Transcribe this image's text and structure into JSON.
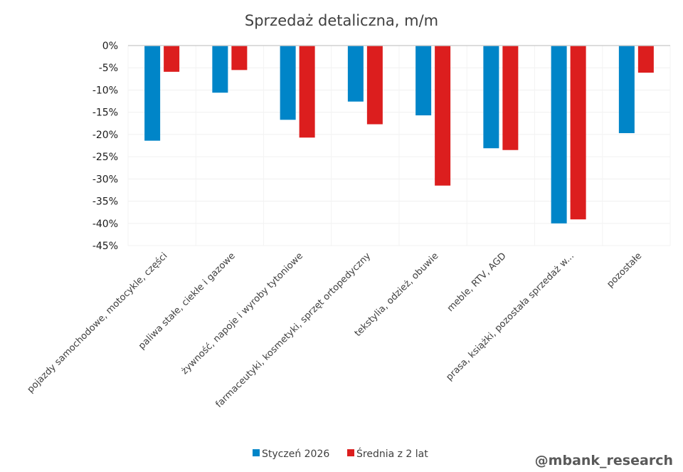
{
  "chart_data": {
    "type": "bar",
    "title": "Sprzedaż detaliczna, m/m",
    "xlabel": "",
    "ylabel": "",
    "ylim": [
      -45,
      0
    ],
    "yticks": [
      0,
      -5,
      -10,
      -15,
      -20,
      -25,
      -30,
      -35,
      -40,
      -45
    ],
    "ytick_labels": [
      "0%",
      "-5%",
      "-10%",
      "-15%",
      "-20%",
      "-25%",
      "-30%",
      "-35%",
      "-40%",
      "-45%"
    ],
    "grid": true,
    "legend_position": "bottom-center",
    "categories": [
      "pojazdy samochodowe, motocykle, części",
      "paliwa stałe, ciekłe i gazowe",
      "żywność, napoje i wyroby tytoniowe",
      "farmaceutyki, kosmetyki, sprzęt ortopedyczny",
      "tekstylia, odzież, obuwie",
      "meble, RTV, AGD",
      "prasa, książki, pozostała sprzedaż w...",
      "pozostałe"
    ],
    "series": [
      {
        "name": "Styczeń 2026",
        "color": "#0085C8",
        "values": [
          -21.4,
          -10.6,
          -16.7,
          -12.6,
          -15.7,
          -23.1,
          -40.0,
          -19.7
        ]
      },
      {
        "name": "Średnia z 2 lat",
        "color": "#DC1E1E",
        "values": [
          -5.9,
          -5.5,
          -20.7,
          -17.7,
          -31.5,
          -23.5,
          -39.1,
          -6.1
        ]
      }
    ]
  },
  "watermark": "@mbank_research"
}
